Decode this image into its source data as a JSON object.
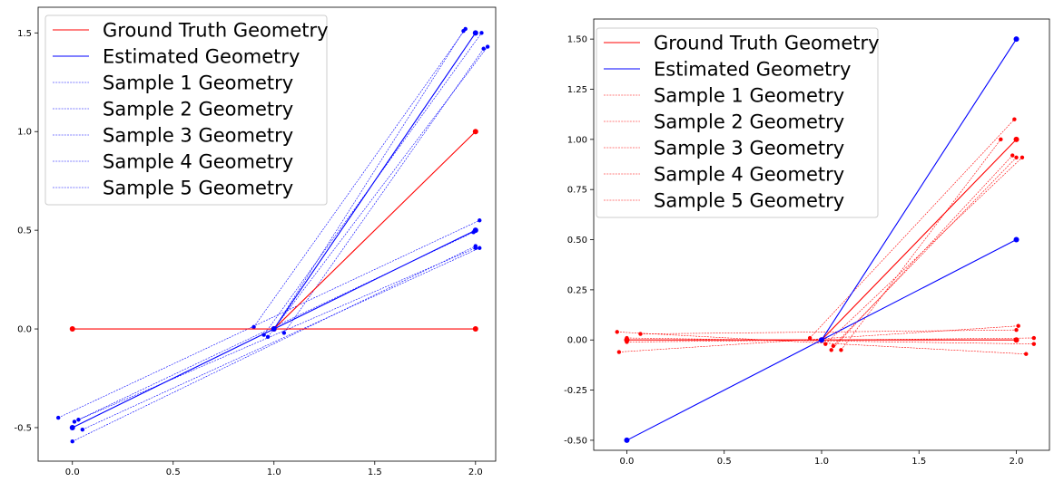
{
  "chart_data": [
    {
      "type": "line",
      "title": "",
      "xlabel": "",
      "ylabel": "",
      "xlim": [
        -0.17,
        2.1
      ],
      "ylim": [
        -0.67,
        1.63
      ],
      "xticks": [
        0.0,
        0.5,
        1.0,
        1.5,
        2.0
      ],
      "xtick_labels": [
        "0.0",
        "0.5",
        "1.0",
        "1.5",
        "2.0"
      ],
      "yticks": [
        -0.5,
        0.0,
        0.5,
        1.0,
        1.5
      ],
      "ytick_labels": [
        "-0.5",
        "0.0",
        "0.5",
        "1.0",
        "1.5"
      ],
      "grid": false,
      "legend_position": "top-left",
      "series": [
        {
          "name": "Ground Truth Geometry",
          "color": "#ff0000",
          "style": "solid",
          "lines": [
            [
              [
                0.0,
                0.0
              ],
              [
                2.0,
                0.0
              ]
            ],
            [
              [
                1.0,
                0.0
              ],
              [
                2.0,
                1.0
              ]
            ]
          ],
          "points": [
            [
              0.0,
              0.0
            ],
            [
              2.0,
              0.0
            ],
            [
              1.0,
              0.0
            ],
            [
              2.0,
              1.0
            ]
          ]
        },
        {
          "name": "Estimated Geometry",
          "color": "#0000ff",
          "style": "solid",
          "lines": [
            [
              [
                0.0,
                -0.5
              ],
              [
                2.0,
                0.5
              ]
            ],
            [
              [
                1.0,
                0.0
              ],
              [
                2.0,
                1.5
              ]
            ]
          ],
          "points": [
            [
              0.0,
              -0.5
            ],
            [
              2.0,
              0.5
            ],
            [
              1.0,
              0.0
            ],
            [
              2.0,
              1.5
            ]
          ]
        },
        {
          "name": "Sample 1 Geometry",
          "color": "#0000ff",
          "style": "dashed",
          "lines": [
            [
              [
                -0.07,
                -0.45
              ],
              [
                2.02,
                0.55
              ]
            ],
            [
              [
                0.9,
                0.01
              ],
              [
                1.95,
                1.52
              ]
            ]
          ],
          "points": [
            [
              -0.07,
              -0.45
            ],
            [
              2.02,
              0.55
            ],
            [
              0.9,
              0.01
            ],
            [
              1.95,
              1.52
            ]
          ]
        },
        {
          "name": "Sample 2 Geometry",
          "color": "#0000ff",
          "style": "dashed",
          "lines": [
            [
              [
                0.0,
                -0.57
              ],
              [
                2.0,
                0.42
              ]
            ],
            [
              [
                1.05,
                -0.02
              ],
              [
                2.04,
                1.42
              ]
            ]
          ],
          "points": [
            [
              0.0,
              -0.57
            ],
            [
              2.0,
              0.42
            ],
            [
              1.05,
              -0.02
            ],
            [
              2.04,
              1.42
            ]
          ]
        },
        {
          "name": "Sample 3 Geometry",
          "color": "#0000ff",
          "style": "dashed",
          "lines": [
            [
              [
                0.05,
                -0.51
              ],
              [
                2.02,
                0.41
              ]
            ],
            [
              [
                0.95,
                -0.03
              ],
              [
                2.03,
                1.5
              ]
            ]
          ],
          "points": [
            [
              0.05,
              -0.51
            ],
            [
              2.02,
              0.41
            ],
            [
              0.95,
              -0.03
            ],
            [
              2.03,
              1.5
            ]
          ]
        },
        {
          "name": "Sample 4 Geometry",
          "color": "#0000ff",
          "style": "dashed",
          "lines": [
            [
              [
                0.01,
                -0.47
              ],
              [
                1.99,
                0.49
              ]
            ],
            [
              [
                0.97,
                -0.04
              ],
              [
                2.06,
                1.43
              ]
            ]
          ],
          "points": [
            [
              0.01,
              -0.47
            ],
            [
              1.99,
              0.49
            ],
            [
              0.97,
              -0.04
            ],
            [
              2.06,
              1.43
            ]
          ]
        },
        {
          "name": "Sample 5 Geometry",
          "color": "#0000ff",
          "style": "dashed",
          "lines": [
            [
              [
                0.03,
                -0.46
              ],
              [
                2.0,
                0.41
              ]
            ],
            [
              [
                1.0,
                0.0
              ],
              [
                1.94,
                1.51
              ]
            ]
          ],
          "points": [
            [
              0.03,
              -0.46
            ],
            [
              2.0,
              0.41
            ],
            [
              1.0,
              0.0
            ],
            [
              1.94,
              1.51
            ]
          ]
        }
      ]
    },
    {
      "type": "line",
      "title": "",
      "xlabel": "",
      "ylabel": "",
      "xlim": [
        -0.17,
        2.17
      ],
      "ylim": [
        -0.55,
        1.6
      ],
      "xticks": [
        0.0,
        0.5,
        1.0,
        1.5,
        2.0
      ],
      "xtick_labels": [
        "0.0",
        "0.5",
        "1.0",
        "1.5",
        "2.0"
      ],
      "yticks": [
        -0.5,
        -0.25,
        0.0,
        0.25,
        0.5,
        0.75,
        1.0,
        1.25,
        1.5
      ],
      "ytick_labels": [
        "-0.50",
        "-0.25",
        "0.00",
        "0.25",
        "0.50",
        "0.75",
        "1.00",
        "1.25",
        "1.50"
      ],
      "grid": false,
      "legend_position": "top-left",
      "series": [
        {
          "name": "Ground Truth Geometry",
          "color": "#ff0000",
          "style": "solid",
          "lines": [
            [
              [
                0.0,
                0.0
              ],
              [
                2.0,
                0.0
              ]
            ],
            [
              [
                1.0,
                0.0
              ],
              [
                2.0,
                1.0
              ]
            ]
          ],
          "points": [
            [
              0.0,
              0.0
            ],
            [
              2.0,
              0.0
            ],
            [
              1.0,
              0.0
            ],
            [
              2.0,
              1.0
            ]
          ]
        },
        {
          "name": "Estimated Geometry",
          "color": "#0000ff",
          "style": "solid",
          "lines": [
            [
              [
                0.0,
                -0.5
              ],
              [
                2.0,
                0.5
              ]
            ],
            [
              [
                1.0,
                0.0
              ],
              [
                2.0,
                1.5
              ]
            ]
          ],
          "points": [
            [
              0.0,
              -0.5
            ],
            [
              2.0,
              0.5
            ],
            [
              1.0,
              0.0
            ],
            [
              2.0,
              1.5
            ]
          ]
        },
        {
          "name": "Sample 1 Geometry",
          "color": "#ff0000",
          "style": "dashed",
          "lines": [
            [
              [
                -0.05,
                0.04
              ],
              [
                2.05,
                -0.07
              ]
            ],
            [
              [
                1.1,
                -0.05
              ],
              [
                1.92,
                1.0
              ]
            ]
          ],
          "points": [
            [
              -0.05,
              0.04
            ],
            [
              2.05,
              -0.07
            ],
            [
              1.1,
              -0.05
            ],
            [
              1.92,
              1.0
            ]
          ]
        },
        {
          "name": "Sample 2 Geometry",
          "color": "#ff0000",
          "style": "dashed",
          "lines": [
            [
              [
                -0.04,
                -0.06
              ],
              [
                2.01,
                0.07
              ]
            ],
            [
              [
                0.94,
                0.01
              ],
              [
                1.99,
                1.1
              ]
            ]
          ],
          "points": [
            [
              -0.04,
              -0.06
            ],
            [
              2.01,
              0.07
            ],
            [
              0.94,
              0.01
            ],
            [
              1.99,
              1.1
            ]
          ]
        },
        {
          "name": "Sample 3 Geometry",
          "color": "#ff0000",
          "style": "dashed",
          "lines": [
            [
              [
                0.0,
                0.01
              ],
              [
                2.09,
                -0.02
              ]
            ],
            [
              [
                1.05,
                -0.05
              ],
              [
                1.98,
                0.92
              ]
            ]
          ],
          "points": [
            [
              0.0,
              0.01
            ],
            [
              2.09,
              -0.02
            ],
            [
              1.05,
              -0.05
            ],
            [
              1.98,
              0.92
            ]
          ]
        },
        {
          "name": "Sample 4 Geometry",
          "color": "#ff0000",
          "style": "dashed",
          "lines": [
            [
              [
                0.07,
                0.03
              ],
              [
                2.0,
                0.05
              ]
            ],
            [
              [
                1.02,
                -0.02
              ],
              [
                2.03,
                0.91
              ]
            ]
          ],
          "points": [
            [
              0.07,
              0.03
            ],
            [
              2.0,
              0.05
            ],
            [
              1.02,
              -0.02
            ],
            [
              2.03,
              0.91
            ]
          ]
        },
        {
          "name": "Sample 5 Geometry",
          "color": "#ff0000",
          "style": "dashed",
          "lines": [
            [
              [
                0.0,
                -0.01
              ],
              [
                2.09,
                0.01
              ]
            ],
            [
              [
                1.06,
                -0.03
              ],
              [
                2.0,
                0.91
              ]
            ]
          ],
          "points": [
            [
              0.0,
              -0.01
            ],
            [
              2.09,
              0.01
            ],
            [
              1.06,
              -0.03
            ],
            [
              2.0,
              0.91
            ]
          ]
        }
      ]
    }
  ]
}
